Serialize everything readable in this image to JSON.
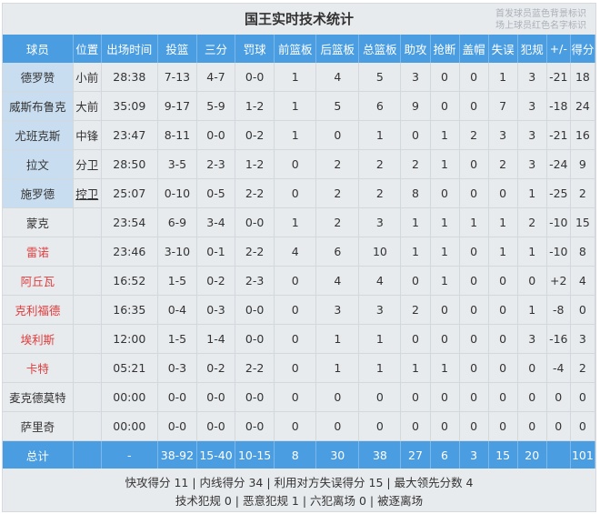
{
  "title": "国王实时技术统计",
  "legend": [
    "首发球员蓝色背景标识",
    "场上球员红色名字标识"
  ],
  "colors": {
    "header": "#4a9de0",
    "starter_bg": "#c9ddf0",
    "on_court_name": "#e03c3c"
  },
  "columns": [
    "球员",
    "位置",
    "出场时间",
    "投篮",
    "三分",
    "罚球",
    "前篮板",
    "后篮板",
    "总篮板",
    "助攻",
    "抢断",
    "盖帽",
    "失误",
    "犯规",
    "+/-",
    "得分"
  ],
  "players": [
    {
      "starter": true,
      "on_court": false,
      "cells": [
        "德罗赞",
        "小前",
        "28:38",
        "7-13",
        "4-7",
        "0-0",
        "1",
        "4",
        "5",
        "3",
        "0",
        "0",
        "1",
        "3",
        "-21",
        "18"
      ]
    },
    {
      "starter": true,
      "on_court": false,
      "cells": [
        "威斯布鲁克",
        "大前",
        "35:09",
        "9-17",
        "5-9",
        "1-2",
        "1",
        "5",
        "6",
        "9",
        "0",
        "0",
        "7",
        "3",
        "-18",
        "24"
      ]
    },
    {
      "starter": true,
      "on_court": false,
      "cells": [
        "尤班克斯",
        "中锋",
        "23:47",
        "8-11",
        "0-0",
        "0-2",
        "1",
        "0",
        "1",
        "0",
        "1",
        "2",
        "3",
        "3",
        "-21",
        "16"
      ]
    },
    {
      "starter": true,
      "on_court": false,
      "cells": [
        "拉文",
        "分卫",
        "28:50",
        "3-5",
        "2-3",
        "1-2",
        "0",
        "2",
        "2",
        "2",
        "1",
        "0",
        "2",
        "3",
        "-24",
        "9"
      ]
    },
    {
      "starter": true,
      "on_court": false,
      "cells": [
        "施罗德",
        "控卫",
        "25:07",
        "0-10",
        "0-5",
        "2-2",
        "0",
        "2",
        "2",
        "8",
        "0",
        "0",
        "0",
        "1",
        "-25",
        "2"
      ]
    },
    {
      "starter": false,
      "on_court": false,
      "cells": [
        "蒙克",
        "",
        "23:54",
        "6-9",
        "3-4",
        "0-0",
        "1",
        "2",
        "3",
        "1",
        "1",
        "1",
        "1",
        "2",
        "-10",
        "15"
      ]
    },
    {
      "starter": false,
      "on_court": true,
      "cells": [
        "雷诺",
        "",
        "23:46",
        "3-10",
        "0-1",
        "2-2",
        "4",
        "6",
        "10",
        "1",
        "1",
        "0",
        "1",
        "1",
        "-10",
        "8"
      ]
    },
    {
      "starter": false,
      "on_court": true,
      "cells": [
        "阿丘瓦",
        "",
        "16:52",
        "1-5",
        "0-2",
        "2-3",
        "0",
        "4",
        "4",
        "0",
        "1",
        "0",
        "0",
        "0",
        "+2",
        "4"
      ]
    },
    {
      "starter": false,
      "on_court": true,
      "cells": [
        "克利福德",
        "",
        "16:35",
        "0-4",
        "0-3",
        "0-0",
        "0",
        "3",
        "3",
        "2",
        "0",
        "0",
        "0",
        "1",
        "-8",
        "0"
      ]
    },
    {
      "starter": false,
      "on_court": true,
      "cells": [
        "埃利斯",
        "",
        "12:00",
        "1-5",
        "1-4",
        "0-0",
        "0",
        "1",
        "1",
        "0",
        "0",
        "0",
        "0",
        "3",
        "-16",
        "3"
      ]
    },
    {
      "starter": false,
      "on_court": true,
      "cells": [
        "卡特",
        "",
        "05:21",
        "0-3",
        "0-2",
        "2-2",
        "0",
        "1",
        "1",
        "1",
        "1",
        "0",
        "0",
        "0",
        "-4",
        "2"
      ]
    },
    {
      "starter": false,
      "on_court": false,
      "cells": [
        "麦克德莫特",
        "",
        "00:00",
        "0-0",
        "0-0",
        "0-0",
        "0",
        "0",
        "0",
        "0",
        "0",
        "0",
        "0",
        "0",
        "0",
        "0"
      ]
    },
    {
      "starter": false,
      "on_court": false,
      "cells": [
        "萨里奇",
        "",
        "00:00",
        "0-0",
        "0-0",
        "0-0",
        "0",
        "0",
        "0",
        "0",
        "0",
        "0",
        "0",
        "0",
        "0",
        "0"
      ]
    }
  ],
  "total": [
    "总计",
    "",
    "-",
    "38-92",
    "15-40",
    "10-15",
    "8",
    "30",
    "38",
    "27",
    "6",
    "3",
    "15",
    "20",
    "",
    "101"
  ],
  "footer": [
    "快攻得分 11 | 内线得分 34 | 利用对方失误得分 15 | 最大领先分数 4",
    "技术犯规 0 | 恶意犯规 1 | 六犯离场 0 | 被逐离场"
  ]
}
